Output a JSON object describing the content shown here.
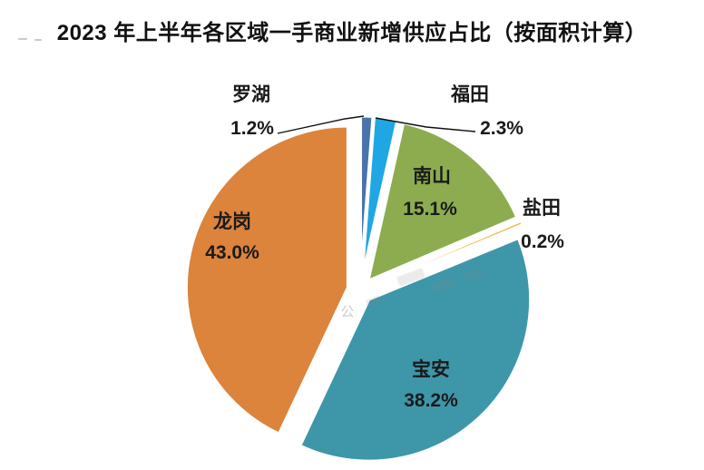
{
  "chart_data": {
    "type": "pie",
    "title": "2023 年上半年各区域一手商业新增供应占比（按面积计算）",
    "unit": "percent",
    "start_angle_deg": 0,
    "direction": "clockwise",
    "legend_position": "none",
    "exploded": true,
    "slices": [
      {
        "id": "luohu",
        "name": "罗湖",
        "value": 1.2,
        "pct_label": "1.2%",
        "color": "#4A72AC"
      },
      {
        "id": "futian",
        "name": "福田",
        "value": 2.3,
        "pct_label": "2.3%",
        "color": "#1FA7E3"
      },
      {
        "id": "nanshan",
        "name": "南山",
        "value": 15.1,
        "pct_label": "15.1%",
        "color": "#8CAC4F"
      },
      {
        "id": "yantian",
        "name": "盐田",
        "value": 0.2,
        "pct_label": "0.2%",
        "color": "#F2B73C"
      },
      {
        "id": "baoan",
        "name": "宝安",
        "value": 38.2,
        "pct_label": "38.2%",
        "color": "#3E96A9"
      },
      {
        "id": "longgang",
        "name": "龙岗",
        "value": 43.0,
        "pct_label": "43.0%",
        "color": "#DC833C"
      }
    ],
    "watermark": "公"
  }
}
